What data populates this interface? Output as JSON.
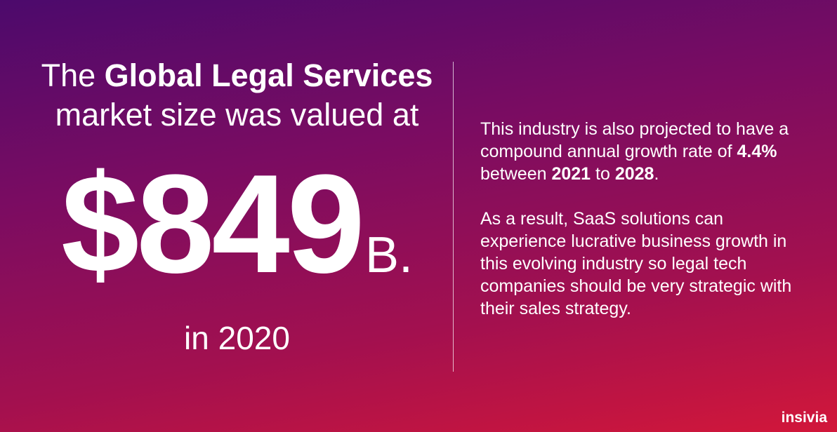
{
  "headline": {
    "lines": [
      {
        "segments": [
          {
            "text": "The ",
            "bold": false
          },
          {
            "text": "Global Legal Services",
            "bold": true
          }
        ]
      },
      {
        "segments": [
          {
            "text": "market size was valued at",
            "bold": false
          }
        ]
      }
    ]
  },
  "figure": {
    "amount": "$849",
    "unit": "B.",
    "year_text": "in 2020"
  },
  "body": {
    "paragraphs": [
      {
        "segments": [
          {
            "text": "This industry is also projected to have a compound annual growth rate of ",
            "bold": false
          },
          {
            "text": "4.4%",
            "bold": true
          },
          {
            "text": " between ",
            "bold": false
          },
          {
            "text": "2021",
            "bold": true
          },
          {
            "text": " to ",
            "bold": false
          },
          {
            "text": "2028",
            "bold": true
          },
          {
            "text": ".",
            "bold": false
          }
        ]
      },
      {
        "segments": [
          {
            "text": "As a result, SaaS solutions can experience lucrative business growth in this evolving industry so legal tech companies should be very strategic with their sales strategy.",
            "bold": false
          }
        ]
      }
    ]
  },
  "brand": "insivia"
}
